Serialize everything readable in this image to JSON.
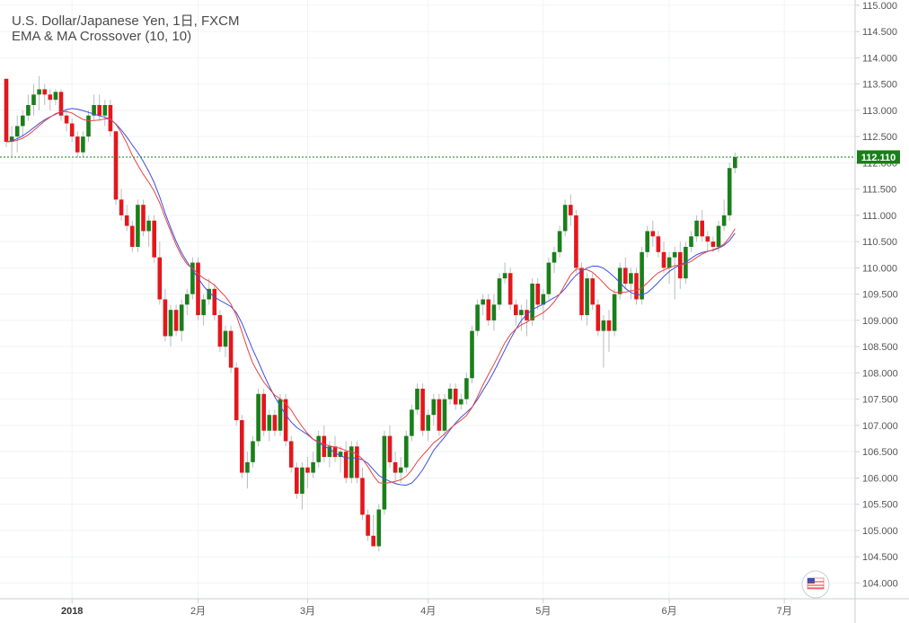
{
  "header": {
    "title": "U.S. Dollar/Japanese Yen, 1日, FXCM",
    "study": "EMA & MA Crossover (10, 10)"
  },
  "colors": {
    "up": "#1a7f1a",
    "down": "#e3171c",
    "ema": "#e64343",
    "ma": "#3d4fe0",
    "last_price": "#1a7f1a",
    "grid": "#f0f3f6",
    "axis": "#c9ced6"
  },
  "chart_data": {
    "type": "candlestick",
    "title": "U.S. Dollar/Japanese Yen, 1日, FXCM",
    "subtitle": "EMA & MA Crossover (10, 10)",
    "y_axis": {
      "position": "right",
      "ylim": [
        103.7,
        115.1
      ],
      "ticks": [
        "115.000",
        "114.500",
        "114.000",
        "113.500",
        "113.000",
        "112.500",
        "112.000",
        "111.500",
        "111.000",
        "110.500",
        "110.000",
        "109.500",
        "109.000",
        "108.500",
        "108.000",
        "107.500",
        "107.000",
        "106.500",
        "106.000",
        "105.500",
        "105.000",
        "104.500",
        "104.000"
      ]
    },
    "x_axis": {
      "ticks": [
        {
          "label": "2018",
          "index": 12,
          "bold": true
        },
        {
          "label": "2月",
          "index": 35
        },
        {
          "label": "3月",
          "index": 55
        },
        {
          "label": "4月",
          "index": 77
        },
        {
          "label": "5月",
          "index": 98
        },
        {
          "label": "6月",
          "index": 121
        },
        {
          "label": "7月",
          "index": 142
        }
      ]
    },
    "last_price": {
      "value": 112.11,
      "label": "112.110"
    },
    "grid": true,
    "ohlc": [
      [
        113.6,
        113.6,
        112.3,
        112.4
      ],
      [
        112.4,
        112.7,
        112.1,
        112.5
      ],
      [
        112.5,
        112.9,
        112.2,
        112.7
      ],
      [
        112.7,
        113.0,
        112.5,
        112.9
      ],
      [
        112.9,
        113.3,
        112.8,
        113.1
      ],
      [
        113.1,
        113.5,
        112.9,
        113.3
      ],
      [
        113.3,
        113.65,
        113.0,
        113.4
      ],
      [
        113.4,
        113.5,
        113.1,
        113.3
      ],
      [
        113.3,
        113.4,
        113.0,
        113.2
      ],
      [
        113.2,
        113.4,
        113.1,
        113.35
      ],
      [
        113.35,
        113.4,
        112.8,
        112.9
      ],
      [
        112.9,
        113.0,
        112.6,
        112.75
      ],
      [
        112.75,
        112.85,
        112.4,
        112.5
      ],
      [
        112.5,
        112.6,
        112.1,
        112.2
      ],
      [
        112.2,
        112.6,
        112.1,
        112.5
      ],
      [
        112.5,
        113.0,
        112.4,
        112.9
      ],
      [
        112.9,
        113.3,
        112.8,
        113.1
      ],
      [
        113.1,
        113.3,
        112.8,
        112.9
      ],
      [
        112.9,
        113.2,
        112.7,
        113.1
      ],
      [
        113.1,
        113.2,
        112.5,
        112.6
      ],
      [
        112.6,
        112.6,
        111.2,
        111.3
      ],
      [
        111.3,
        111.5,
        110.9,
        111.0
      ],
      [
        111.0,
        111.2,
        110.7,
        110.8
      ],
      [
        110.8,
        110.9,
        110.3,
        110.4
      ],
      [
        110.4,
        111.3,
        110.3,
        111.2
      ],
      [
        111.2,
        111.3,
        110.6,
        110.7
      ],
      [
        110.7,
        111.0,
        110.4,
        110.9
      ],
      [
        110.9,
        111.0,
        110.1,
        110.2
      ],
      [
        110.2,
        110.5,
        109.3,
        109.4
      ],
      [
        109.4,
        109.6,
        108.6,
        108.7
      ],
      [
        108.7,
        109.3,
        108.5,
        109.2
      ],
      [
        109.2,
        109.3,
        108.7,
        108.8
      ],
      [
        108.8,
        109.4,
        108.6,
        109.3
      ],
      [
        109.3,
        109.6,
        109.1,
        109.5
      ],
      [
        109.5,
        110.2,
        109.4,
        110.1
      ],
      [
        110.1,
        110.2,
        109.0,
        109.1
      ],
      [
        109.1,
        109.5,
        108.9,
        109.4
      ],
      [
        109.4,
        109.8,
        109.3,
        109.6
      ],
      [
        109.6,
        109.7,
        109.0,
        109.1
      ],
      [
        109.1,
        109.2,
        108.4,
        108.5
      ],
      [
        108.5,
        108.9,
        108.3,
        108.8
      ],
      [
        108.8,
        108.9,
        108.0,
        108.1
      ],
      [
        108.1,
        108.2,
        107.0,
        107.1
      ],
      [
        107.1,
        107.2,
        106.0,
        106.1
      ],
      [
        106.1,
        106.5,
        105.8,
        106.3
      ],
      [
        106.3,
        106.8,
        106.2,
        106.7
      ],
      [
        106.7,
        107.7,
        106.6,
        107.6
      ],
      [
        107.6,
        107.7,
        106.8,
        106.9
      ],
      [
        106.9,
        107.3,
        106.7,
        107.2
      ],
      [
        107.2,
        107.3,
        106.8,
        106.9
      ],
      [
        106.9,
        107.6,
        106.8,
        107.5
      ],
      [
        107.5,
        107.6,
        106.6,
        106.7
      ],
      [
        106.7,
        106.8,
        106.1,
        106.2
      ],
      [
        106.2,
        106.3,
        105.6,
        105.7
      ],
      [
        105.7,
        106.3,
        105.4,
        106.2
      ],
      [
        106.2,
        106.4,
        105.8,
        106.1
      ],
      [
        106.1,
        106.5,
        106.0,
        106.3
      ],
      [
        106.3,
        106.9,
        106.2,
        106.8
      ],
      [
        106.8,
        107.0,
        106.3,
        106.4
      ],
      [
        106.4,
        106.7,
        106.2,
        106.6
      ],
      [
        106.6,
        106.8,
        106.3,
        106.4
      ],
      [
        106.4,
        106.6,
        106.1,
        106.5
      ],
      [
        106.5,
        106.7,
        105.9,
        106.0
      ],
      [
        106.0,
        106.7,
        105.9,
        106.6
      ],
      [
        106.6,
        106.7,
        105.9,
        106.0
      ],
      [
        106.0,
        106.2,
        105.2,
        105.3
      ],
      [
        105.3,
        105.4,
        104.8,
        104.9
      ],
      [
        104.9,
        105.3,
        104.7,
        104.7
      ],
      [
        104.7,
        105.5,
        104.6,
        105.4
      ],
      [
        105.4,
        106.9,
        105.3,
        106.8
      ],
      [
        106.8,
        107.0,
        106.2,
        106.3
      ],
      [
        106.3,
        106.5,
        105.9,
        106.1
      ],
      [
        106.1,
        106.4,
        105.9,
        106.2
      ],
      [
        106.2,
        106.9,
        106.1,
        106.8
      ],
      [
        106.8,
        107.4,
        106.7,
        107.3
      ],
      [
        107.3,
        107.8,
        107.2,
        107.7
      ],
      [
        107.7,
        107.8,
        106.8,
        106.9
      ],
      [
        106.9,
        107.3,
        106.7,
        107.2
      ],
      [
        107.2,
        107.6,
        107.0,
        107.5
      ],
      [
        107.5,
        107.6,
        106.8,
        106.9
      ],
      [
        106.9,
        107.6,
        106.8,
        107.5
      ],
      [
        107.5,
        107.8,
        107.4,
        107.7
      ],
      [
        107.7,
        107.8,
        107.3,
        107.4
      ],
      [
        107.4,
        107.6,
        107.3,
        107.5
      ],
      [
        107.5,
        108.0,
        107.4,
        107.9
      ],
      [
        107.9,
        108.9,
        107.8,
        108.8
      ],
      [
        108.8,
        109.4,
        108.7,
        109.3
      ],
      [
        109.3,
        109.5,
        109.1,
        109.4
      ],
      [
        109.4,
        109.5,
        108.9,
        109.0
      ],
      [
        109.0,
        109.5,
        108.8,
        109.3
      ],
      [
        109.3,
        109.9,
        109.2,
        109.8
      ],
      [
        109.8,
        110.1,
        109.7,
        109.9
      ],
      [
        109.9,
        110.0,
        109.2,
        109.3
      ],
      [
        109.3,
        109.4,
        108.9,
        109.1
      ],
      [
        109.1,
        109.3,
        108.8,
        109.2
      ],
      [
        109.2,
        109.4,
        108.7,
        109.0
      ],
      [
        109.0,
        109.8,
        108.9,
        109.7
      ],
      [
        109.7,
        109.8,
        109.2,
        109.3
      ],
      [
        109.3,
        109.6,
        109.0,
        109.5
      ],
      [
        109.5,
        110.2,
        109.4,
        110.1
      ],
      [
        110.1,
        110.4,
        109.9,
        110.3
      ],
      [
        110.3,
        110.8,
        110.2,
        110.7
      ],
      [
        110.7,
        111.3,
        110.6,
        111.2
      ],
      [
        111.2,
        111.4,
        110.8,
        111.0
      ],
      [
        111.0,
        111.1,
        109.9,
        110.0
      ],
      [
        110.0,
        110.1,
        109.0,
        109.1
      ],
      [
        109.1,
        109.9,
        108.9,
        109.8
      ],
      [
        109.8,
        109.9,
        109.2,
        109.3
      ],
      [
        109.3,
        109.4,
        108.7,
        108.8
      ],
      [
        108.8,
        109.1,
        108.1,
        109.0
      ],
      [
        109.0,
        109.2,
        108.4,
        108.8
      ],
      [
        108.8,
        109.6,
        108.7,
        109.5
      ],
      [
        109.5,
        110.1,
        109.4,
        110.0
      ],
      [
        110.0,
        110.2,
        109.6,
        109.7
      ],
      [
        109.7,
        110.0,
        109.4,
        109.9
      ],
      [
        109.9,
        110.0,
        109.3,
        109.4
      ],
      [
        109.4,
        110.4,
        109.3,
        110.3
      ],
      [
        110.3,
        110.8,
        110.2,
        110.7
      ],
      [
        110.7,
        110.9,
        110.4,
        110.6
      ],
      [
        110.6,
        110.7,
        110.2,
        110.3
      ],
      [
        110.3,
        110.5,
        109.9,
        110.0
      ],
      [
        110.0,
        110.3,
        109.7,
        110.2
      ],
      [
        110.2,
        110.4,
        109.4,
        110.3
      ],
      [
        110.3,
        110.5,
        109.6,
        109.8
      ],
      [
        109.8,
        110.5,
        109.7,
        110.4
      ],
      [
        110.4,
        110.7,
        110.3,
        110.6
      ],
      [
        110.6,
        111.0,
        110.5,
        110.9
      ],
      [
        110.9,
        111.1,
        110.5,
        110.6
      ],
      [
        110.6,
        110.7,
        110.3,
        110.5
      ],
      [
        110.5,
        110.6,
        110.3,
        110.4
      ],
      [
        110.4,
        110.9,
        110.3,
        110.8
      ],
      [
        110.8,
        111.3,
        110.7,
        111.0
      ],
      [
        111.0,
        112.0,
        110.9,
        111.9
      ],
      [
        111.9,
        112.2,
        111.8,
        112.11
      ]
    ]
  }
}
